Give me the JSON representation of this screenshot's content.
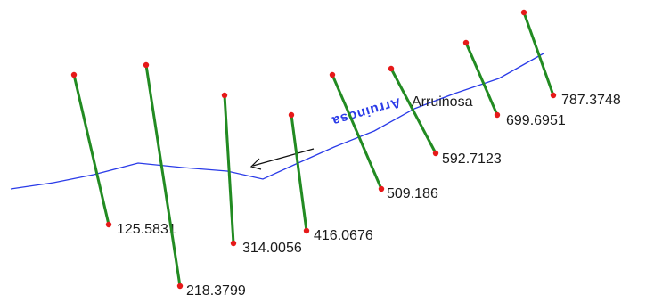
{
  "colors": {
    "river": "#2a3be8",
    "cross_section": "#228b22",
    "endpoint": "#e61919",
    "arrow": "#111111",
    "label": "#1a1a1a"
  },
  "river": {
    "name": "Arruinosa",
    "mirrored_label": "Arruinosa"
  },
  "cross_sections": [
    {
      "station": "125.5831"
    },
    {
      "station": "218.3799"
    },
    {
      "station": "314.0056"
    },
    {
      "station": "416.0676"
    },
    {
      "station": "509.186"
    },
    {
      "station": "592.7123"
    },
    {
      "station": "699.6951"
    },
    {
      "station": "787.3748"
    }
  ]
}
